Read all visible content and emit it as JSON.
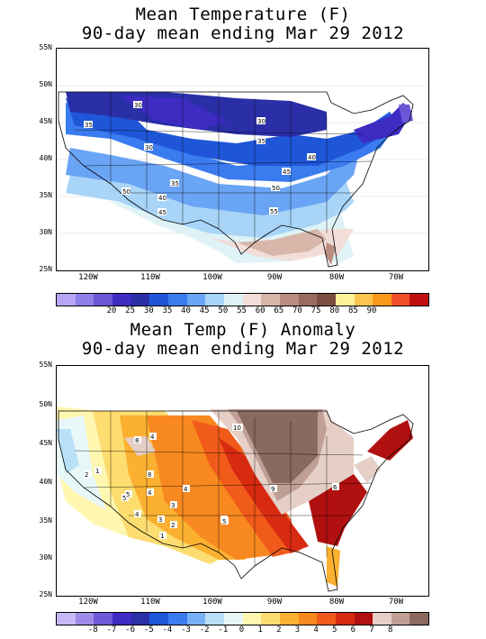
{
  "panels": [
    {
      "title_line1": "Mean Temperature (F)",
      "title_line2": "90-day mean ending Mar 29 2012",
      "lat_labels": [
        "55N",
        "50N",
        "45N",
        "40N",
        "35N",
        "30N",
        "25N"
      ],
      "lon_labels": [
        "120W",
        "110W",
        "100W",
        "90W",
        "80W",
        "70W"
      ],
      "colorbar": {
        "colors": [
          "#b9a5f5",
          "#8f7fe8",
          "#6a57d8",
          "#3d2bc2",
          "#2a2fa8",
          "#1f56d8",
          "#3a7cf0",
          "#6aa4f5",
          "#a8d4f7",
          "#dff3f7",
          "#f2ded8",
          "#d8b6aa",
          "#b98d80",
          "#9a6c5f",
          "#7a4e40",
          "#fff09a",
          "#fdc550",
          "#fb9a1a",
          "#f0502a",
          "#c01010"
        ],
        "labels": [
          "20",
          "25",
          "30",
          "35",
          "40",
          "45",
          "50",
          "55",
          "60",
          "65",
          "70",
          "75",
          "80",
          "85",
          "90"
        ]
      },
      "contour_labels": [
        "30",
        "30",
        "35",
        "30",
        "35",
        "40",
        "45",
        "50",
        "55",
        "35",
        "40",
        "45",
        "50"
      ]
    },
    {
      "title_line1": "Mean Temp (F) Anomaly",
      "title_line2": "90-day mean ending Mar 29 2012",
      "lat_labels": [
        "55N",
        "50N",
        "45N",
        "40N",
        "35N",
        "30N",
        "25N"
      ],
      "lon_labels": [
        "120W",
        "110W",
        "100W",
        "90W",
        "80W",
        "70W"
      ],
      "colorbar": {
        "colors": [
          "#c8b8f5",
          "#a08ae8",
          "#6e5ad8",
          "#3d2bc2",
          "#2a2fa8",
          "#1f56d8",
          "#3a7cf0",
          "#78b0f5",
          "#b8e0f7",
          "#e8f7f7",
          "#fff6b0",
          "#fddc70",
          "#fbb030",
          "#f88820",
          "#f05a1a",
          "#d82a10",
          "#b01010",
          "#e6cfc6",
          "#c0a096",
          "#8a6a5e"
        ],
        "labels": [
          "-8",
          "-7",
          "-6",
          "-5",
          "-4",
          "-3",
          "-2",
          "-1",
          "0",
          "1",
          "2",
          "3",
          "4",
          "5",
          "6",
          "7",
          "8"
        ]
      },
      "contour_labels": [
        "10",
        "8",
        "4",
        "8",
        "4",
        "9",
        "5",
        "5",
        "4",
        "3",
        "2",
        "1",
        "2",
        "1",
        "3",
        "4",
        "5",
        "5",
        "6"
      ]
    }
  ]
}
